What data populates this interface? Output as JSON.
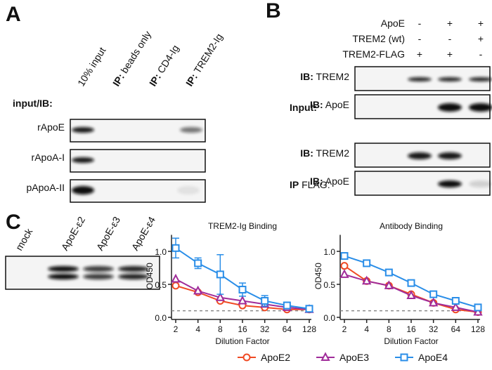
{
  "panel_a": {
    "letter": "A",
    "first_column": "10% input",
    "ip_prefix": "IP:",
    "ip_columns": [
      "beads only",
      "CD4-Ig",
      "TREM2-Ig"
    ],
    "row_header": "input/IB:",
    "rows": [
      "rApoE",
      "rApoA-I",
      "pApoA-II"
    ]
  },
  "panel_b": {
    "letter": "B",
    "conditions": [
      {
        "label": "ApoE",
        "signs": [
          "-",
          "+",
          "+"
        ]
      },
      {
        "label": "TREM2 (wt)",
        "signs": [
          "-",
          "-",
          "+"
        ]
      },
      {
        "label": "TREM2-FLAG",
        "signs": [
          "+",
          "+",
          "-"
        ]
      }
    ],
    "ib_prefix": "IB:",
    "input_label": "Input:",
    "ip_label": "IP",
    "ip_suffix": "FLAG:",
    "input_blots": [
      "TREM2",
      "ApoE"
    ],
    "ip_blots": [
      "TREM2",
      "ApoE"
    ]
  },
  "panel_c": {
    "letter": "C",
    "lanes": [
      "mock",
      "ApoE-ε2",
      "ApoE-ε3",
      "ApoE-ε4"
    ]
  },
  "chart_data": [
    {
      "type": "line",
      "title": "TREM2-Ig Binding",
      "x_label": "Dilution Factor",
      "y_label": "OD450",
      "log_x_base": 2,
      "xlim": [
        2,
        128
      ],
      "xticks": [
        2,
        4,
        8,
        16,
        32,
        64,
        128
      ],
      "ylim": [
        0,
        1.25
      ],
      "yticks": [
        {
          "value": 0,
          "label": "0.0"
        },
        0.5,
        {
          "value": 1,
          "label": "1.0"
        }
      ],
      "reference_line": 0.1,
      "legend": "bottom",
      "x": [
        2,
        4,
        8,
        16,
        32,
        64,
        128
      ],
      "series": [
        {
          "name": "ApoE2",
          "color": "#f04a24",
          "marker": "circle",
          "values": [
            0.48,
            0.38,
            0.25,
            0.18,
            0.15,
            0.12,
            0.12
          ]
        },
        {
          "name": "ApoE3",
          "color": "#a02c9a",
          "marker": "triangle",
          "values": [
            0.58,
            0.4,
            0.3,
            0.25,
            0.2,
            0.15,
            0.12
          ]
        },
        {
          "name": "ApoE4",
          "color": "#2a8ee8",
          "marker": "square",
          "values": [
            1.05,
            0.82,
            0.65,
            0.42,
            0.25,
            0.18,
            0.13
          ],
          "errors": [
            0.15,
            0.08,
            0.3,
            0.1,
            0.08,
            0.05,
            0.02
          ]
        }
      ]
    },
    {
      "type": "line",
      "title": "Antibody Binding",
      "x_label": "Dilution Factor",
      "y_label": "OD450",
      "log_x_base": 2,
      "xlim": [
        2,
        128
      ],
      "xticks": [
        2,
        4,
        8,
        16,
        32,
        64,
        128
      ],
      "ylim": [
        0,
        1.25
      ],
      "yticks": [
        {
          "value": 0,
          "label": "0.0"
        },
        0.5,
        {
          "value": 1,
          "label": "1.0"
        }
      ],
      "reference_line": 0.1,
      "x": [
        2,
        4,
        8,
        16,
        32,
        64,
        128
      ],
      "series": [
        {
          "name": "ApoE2",
          "color": "#f04a24",
          "marker": "circle",
          "values": [
            0.78,
            0.55,
            0.48,
            0.35,
            0.22,
            0.12,
            0.08
          ]
        },
        {
          "name": "ApoE3",
          "color": "#a02c9a",
          "marker": "triangle",
          "values": [
            0.65,
            0.55,
            0.48,
            0.33,
            0.22,
            0.15,
            0.08
          ]
        },
        {
          "name": "ApoE4",
          "color": "#2a8ee8",
          "marker": "square",
          "values": [
            0.93,
            0.82,
            0.68,
            0.52,
            0.35,
            0.25,
            0.15
          ]
        }
      ]
    }
  ]
}
